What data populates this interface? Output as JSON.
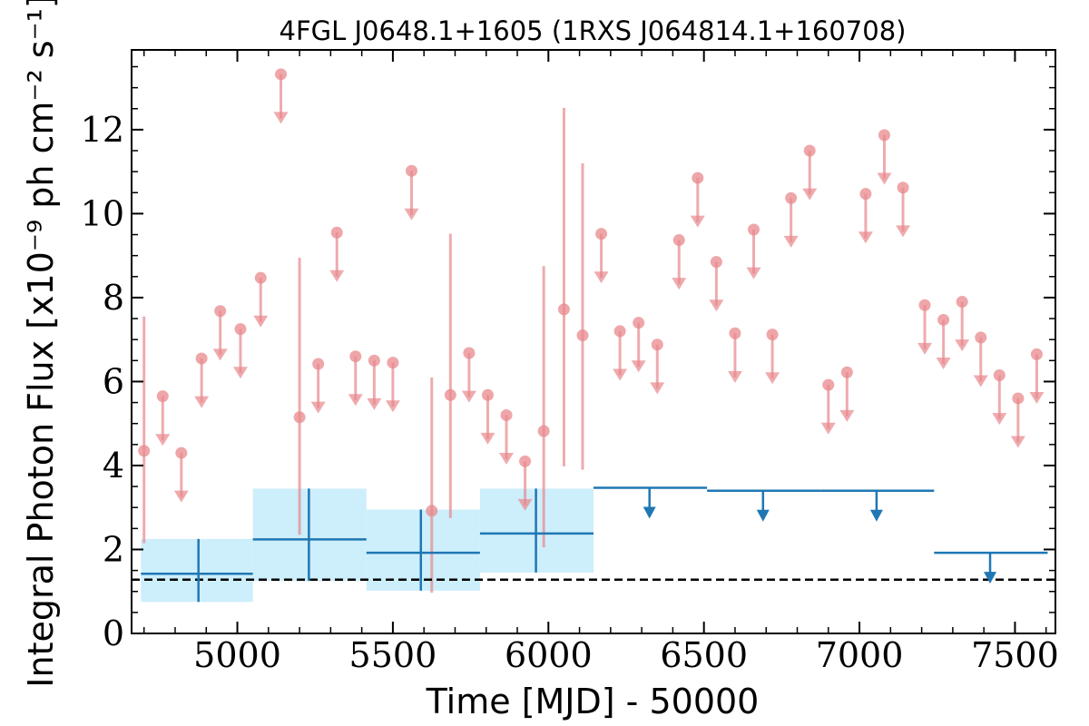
{
  "chart_data": {
    "type": "scatter",
    "title": "4FGL J0648.1+1605 (1RXS J064814.1+160708)",
    "xlabel": "Time [MJD] - 50000",
    "ylabel": "Integral Photon Flux [x10⁻⁹ ph cm⁻² s⁻¹]",
    "xlim": [
      4660,
      7630
    ],
    "ylim": [
      0,
      13.9
    ],
    "xticks": [
      5000,
      5500,
      6000,
      6500,
      7000,
      7500
    ],
    "xtick_labels": [
      "5000",
      "5500",
      "6000",
      "6500",
      "7000",
      "7500"
    ],
    "yticks": [
      0,
      2,
      4,
      6,
      8,
      10,
      12
    ],
    "ytick_labels": [
      "0",
      "2",
      "4",
      "6",
      "8",
      "10",
      "12"
    ],
    "grid": false,
    "colors": {
      "short_bins": "#e8888c",
      "long_bins": "#1f77b4",
      "long_bins_band": "#cdeefb",
      "reference_line": "#000000"
    },
    "reference_line": {
      "y": 1.28,
      "style": "dashed"
    },
    "short_bins": {
      "detections": [
        {
          "x": 4700,
          "y": 4.35,
          "ylo": 2.15,
          "yhi": 7.55
        },
        {
          "x": 5200,
          "y": 5.15,
          "ylo": 2.35,
          "yhi": 8.95
        },
        {
          "x": 5625,
          "y": 2.92,
          "ylo": 0.97,
          "yhi": 6.1
        },
        {
          "x": 5685,
          "y": 5.68,
          "ylo": 2.75,
          "yhi": 9.52
        },
        {
          "x": 5985,
          "y": 4.82,
          "ylo": 2.05,
          "yhi": 8.75
        },
        {
          "x": 6050,
          "y": 7.72,
          "ylo": 3.98,
          "yhi": 12.52
        },
        {
          "x": 6110,
          "y": 7.1,
          "ylo": 3.9,
          "yhi": 11.2
        }
      ],
      "upper_limits": [
        {
          "x": 4760,
          "y": 5.65
        },
        {
          "x": 4820,
          "y": 4.3
        },
        {
          "x": 4885,
          "y": 6.55
        },
        {
          "x": 4945,
          "y": 7.68
        },
        {
          "x": 5010,
          "y": 7.25
        },
        {
          "x": 5075,
          "y": 8.47
        },
        {
          "x": 5140,
          "y": 13.32
        },
        {
          "x": 5260,
          "y": 6.42
        },
        {
          "x": 5320,
          "y": 9.55
        },
        {
          "x": 5380,
          "y": 6.6
        },
        {
          "x": 5440,
          "y": 6.5
        },
        {
          "x": 5500,
          "y": 6.45
        },
        {
          "x": 5560,
          "y": 11.02
        },
        {
          "x": 5745,
          "y": 6.68
        },
        {
          "x": 5805,
          "y": 5.68
        },
        {
          "x": 5865,
          "y": 5.2
        },
        {
          "x": 5925,
          "y": 4.1
        },
        {
          "x": 6170,
          "y": 9.52
        },
        {
          "x": 6230,
          "y": 7.2
        },
        {
          "x": 6290,
          "y": 7.4
        },
        {
          "x": 6350,
          "y": 6.88
        },
        {
          "x": 6420,
          "y": 9.37
        },
        {
          "x": 6480,
          "y": 10.85
        },
        {
          "x": 6540,
          "y": 8.85
        },
        {
          "x": 6600,
          "y": 7.15
        },
        {
          "x": 6660,
          "y": 9.62
        },
        {
          "x": 6720,
          "y": 7.12
        },
        {
          "x": 6780,
          "y": 10.37
        },
        {
          "x": 6840,
          "y": 11.5
        },
        {
          "x": 6900,
          "y": 5.92
        },
        {
          "x": 6960,
          "y": 6.22
        },
        {
          "x": 7020,
          "y": 10.47
        },
        {
          "x": 7080,
          "y": 11.87
        },
        {
          "x": 7140,
          "y": 10.62
        },
        {
          "x": 7210,
          "y": 7.82
        },
        {
          "x": 7270,
          "y": 7.47
        },
        {
          "x": 7330,
          "y": 7.9
        },
        {
          "x": 7390,
          "y": 7.05
        },
        {
          "x": 7450,
          "y": 6.15
        },
        {
          "x": 7510,
          "y": 5.6
        },
        {
          "x": 7570,
          "y": 6.65
        }
      ]
    },
    "long_bins": {
      "detections": [
        {
          "x": 4875,
          "x0": 4690,
          "x1": 5050,
          "y": 1.42,
          "ylo": 0.75,
          "yhi": 2.25
        },
        {
          "x": 5230,
          "x0": 5050,
          "x1": 5415,
          "y": 2.24,
          "ylo": 1.25,
          "yhi": 3.45
        },
        {
          "x": 5590,
          "x0": 5415,
          "x1": 5780,
          "y": 1.92,
          "ylo": 1.02,
          "yhi": 2.95
        },
        {
          "x": 5960,
          "x0": 5780,
          "x1": 6145,
          "y": 2.38,
          "ylo": 1.45,
          "yhi": 3.45
        }
      ],
      "upper_limits": [
        {
          "x": 6325,
          "x0": 6145,
          "x1": 6510,
          "y": 3.47
        },
        {
          "x": 6690,
          "x0": 6510,
          "x1": 6875,
          "y": 3.4
        },
        {
          "x": 7055,
          "x0": 6875,
          "x1": 7240,
          "y": 3.4
        },
        {
          "x": 7420,
          "x0": 7240,
          "x1": 7605,
          "y": 1.92
        }
      ]
    }
  }
}
